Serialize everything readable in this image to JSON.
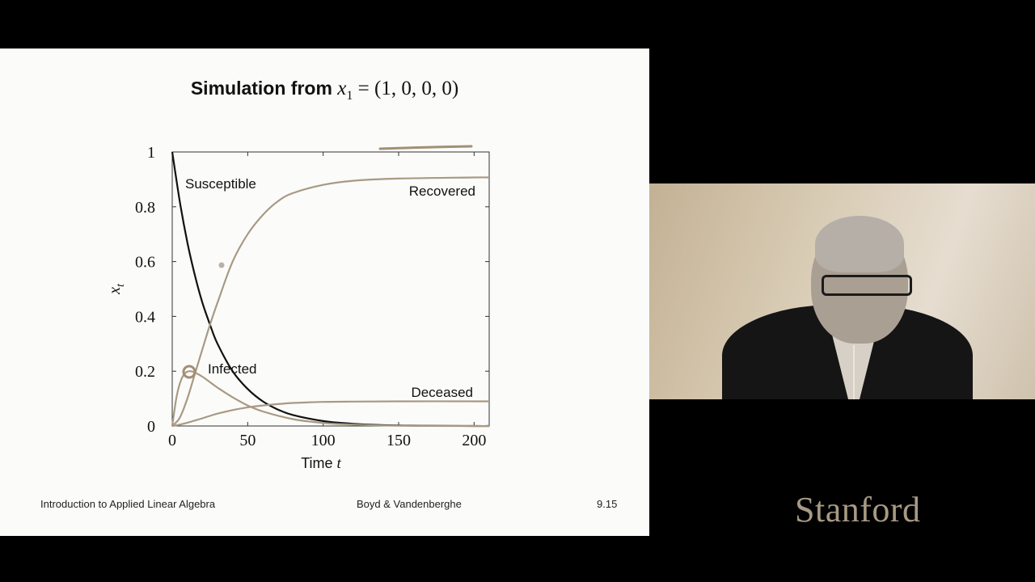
{
  "slide": {
    "title_prefix": "Simulation from ",
    "title_var": "x",
    "title_sub": "1",
    "title_eq": " = (1, 0, 0, 0)",
    "footer_left": "Introduction to Applied Linear Algebra",
    "footer_center": "Boyd & Vandenberghe",
    "footer_right": "9.15"
  },
  "webcam_logo": "Stanford",
  "colors": {
    "black_curve": "#111111",
    "tan_curve": "#a89a83",
    "annotation": "#a28f74"
  },
  "chart_data": {
    "type": "line",
    "xlabel": "Time t",
    "ylabel": "x_t",
    "xlim": [
      0,
      210
    ],
    "ylim": [
      0,
      1
    ],
    "xticks": [
      0,
      50,
      100,
      150,
      200
    ],
    "yticks": [
      0,
      0.2,
      0.4,
      0.6,
      0.8,
      1
    ],
    "ytick_labels": [
      "0",
      "0.2",
      "0.4",
      "0.6",
      "0.8",
      "1"
    ],
    "grid": false,
    "series": [
      {
        "name": "Susceptible",
        "color": "black",
        "x": [
          0,
          5,
          10,
          15,
          20,
          25,
          30,
          40,
          50,
          60,
          70,
          80,
          100,
          120,
          150,
          200,
          210
        ],
        "y": [
          1.0,
          0.82,
          0.67,
          0.55,
          0.45,
          0.37,
          0.3,
          0.2,
          0.135,
          0.09,
          0.06,
          0.04,
          0.018,
          0.008,
          0.002,
          0.0,
          0.0
        ]
      },
      {
        "name": "Infected",
        "color": "tan",
        "x": [
          0,
          3,
          6,
          9,
          12,
          15,
          20,
          25,
          30,
          40,
          50,
          60,
          80,
          100,
          120,
          150,
          200,
          210
        ],
        "y": [
          0.0,
          0.11,
          0.17,
          0.195,
          0.2,
          0.195,
          0.18,
          0.16,
          0.14,
          0.105,
          0.075,
          0.053,
          0.025,
          0.011,
          0.005,
          0.001,
          0.0,
          0.0
        ]
      },
      {
        "name": "Recovered",
        "color": "tan",
        "x": [
          0,
          5,
          10,
          15,
          20,
          25,
          30,
          40,
          50,
          60,
          70,
          80,
          100,
          120,
          150,
          200,
          210
        ],
        "y": [
          0.0,
          0.03,
          0.1,
          0.19,
          0.28,
          0.37,
          0.45,
          0.6,
          0.7,
          0.77,
          0.82,
          0.85,
          0.88,
          0.895,
          0.903,
          0.907,
          0.907
        ]
      },
      {
        "name": "Deceased",
        "color": "tan",
        "x": [
          0,
          5,
          10,
          15,
          20,
          25,
          30,
          40,
          50,
          60,
          70,
          80,
          100,
          120,
          150,
          200,
          210
        ],
        "y": [
          0.0,
          0.005,
          0.012,
          0.02,
          0.028,
          0.037,
          0.045,
          0.058,
          0.068,
          0.075,
          0.08,
          0.084,
          0.088,
          0.089,
          0.09,
          0.09,
          0.09
        ]
      }
    ],
    "labels": [
      "Susceptible",
      "Infected",
      "Recovered",
      "Deceased"
    ]
  }
}
